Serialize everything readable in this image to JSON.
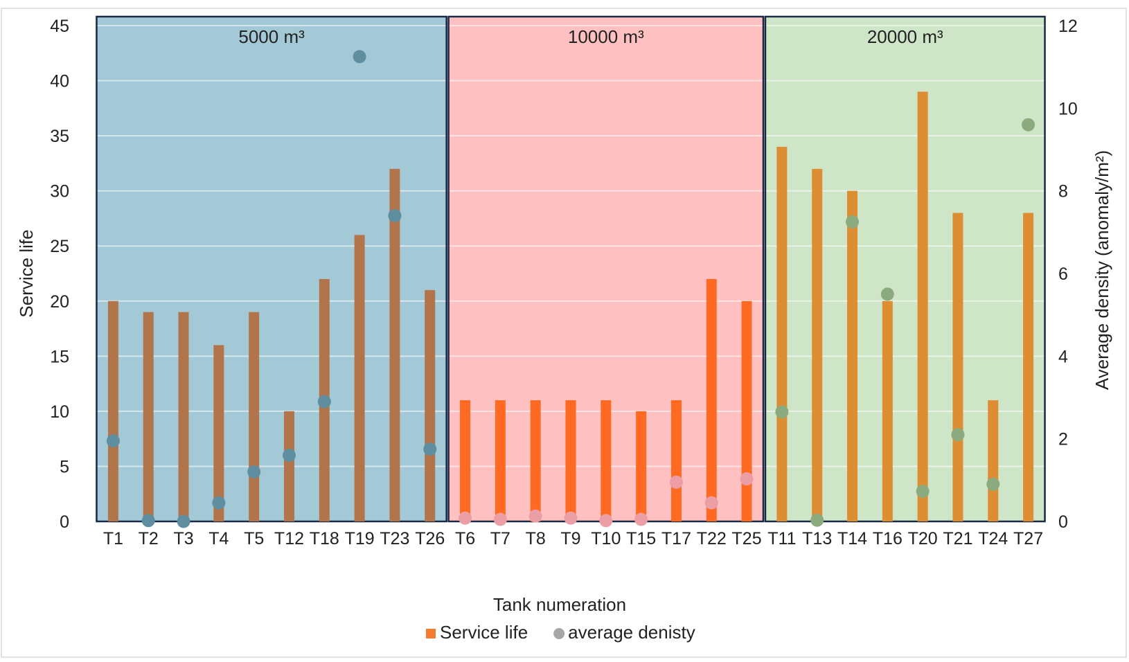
{
  "chart_data": {
    "type": "bar",
    "xlabel": "Tank numeration",
    "ylabel": "Service life",
    "y2label": "Average density (anomaly/m²)",
    "ylim": [
      0,
      45
    ],
    "y2lim": [
      0,
      12
    ],
    "yticks": [
      0,
      5,
      10,
      15,
      20,
      25,
      30,
      35,
      40,
      45
    ],
    "y2ticks": [
      0,
      2,
      4,
      6,
      8,
      10,
      12
    ],
    "grid": true,
    "legend_position": "bottom",
    "legend": [
      {
        "label": "Service life",
        "marker": "square",
        "color": "#f47c30"
      },
      {
        "label": "average denisty",
        "marker": "circle",
        "color": "#a6a6a6"
      }
    ],
    "groups": [
      {
        "label": "5000 m³",
        "panel_color": "#a3c9d6",
        "bar_color": "#b2744a",
        "dot_color": "#5f8ea0",
        "categories": [
          "T1",
          "T2",
          "T3",
          "T4",
          "T5",
          "T12",
          "T18",
          "T19",
          "T23",
          "T26"
        ],
        "service_life": [
          20,
          19,
          19,
          16,
          19,
          10,
          22,
          26,
          32,
          21
        ],
        "average_density": [
          1.95,
          0.02,
          0.0,
          0.45,
          1.2,
          1.6,
          2.9,
          11.25,
          7.4,
          1.75
        ]
      },
      {
        "label": "10000 m³",
        "panel_color": "#fec0c0",
        "bar_color": "#fe6a21",
        "dot_color": "#eb9ea5",
        "categories": [
          "T6",
          "T7",
          "T8",
          "T9",
          "T10",
          "T15",
          "T17",
          "T22",
          "T25"
        ],
        "service_life": [
          11,
          11,
          11,
          11,
          11,
          10,
          11,
          22,
          20
        ],
        "average_density": [
          0.08,
          0.05,
          0.13,
          0.08,
          0.02,
          0.05,
          0.95,
          0.45,
          1.03
        ]
      },
      {
        "label": "20000 m³",
        "panel_color": "#cfe5c8",
        "bar_color": "#dd8e33",
        "dot_color": "#8bab7f",
        "categories": [
          "T11",
          "T13",
          "T14",
          "T16",
          "T20",
          "T21",
          "T24",
          "T27"
        ],
        "service_life": [
          34,
          32,
          30,
          20,
          39,
          28,
          11,
          28
        ],
        "average_density": [
          2.65,
          0.03,
          7.25,
          5.5,
          0.73,
          2.1,
          0.9,
          9.6
        ]
      }
    ]
  }
}
